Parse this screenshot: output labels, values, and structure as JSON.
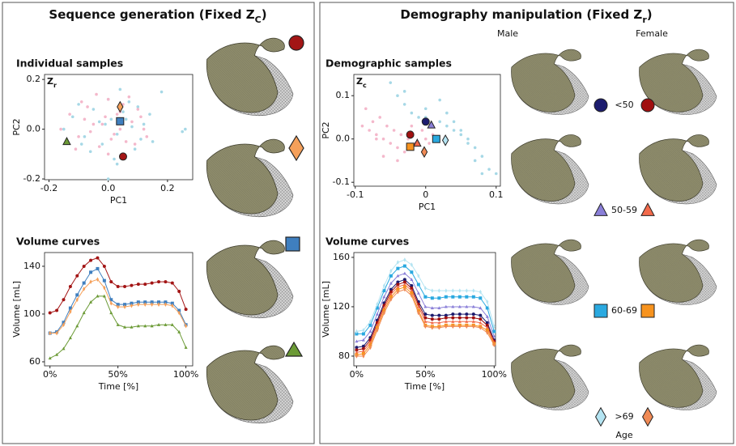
{
  "panels": [
    {
      "title": "Sequence generation (Fixed Z",
      "title_sub": "C",
      "title_end": ")"
    },
    {
      "title": "Demography manipulation (Fixed Z",
      "title_sub": "r",
      "title_end": ")",
      "sex_labels": [
        "Male",
        "Female"
      ],
      "age_groups": [
        "<50",
        "50-59",
        "60-69",
        ">69"
      ],
      "age_label": "Age"
    }
  ],
  "chart_data": [
    {
      "type": "scatter",
      "title": "Individual samples",
      "corner_label": "Z",
      "corner_label_sub": "r",
      "x_label": "PC1",
      "y_label": "PC2",
      "xlim": [
        -0.215,
        0.285
      ],
      "ylim": [
        -0.203,
        0.22
      ],
      "xticks": [
        -0.2,
        {
          "value": 0,
          "label": "0.0"
        },
        0.2
      ],
      "yticks": [
        -0.2,
        {
          "value": 0,
          "label": "0.0"
        },
        0.2
      ],
      "series": [
        {
          "color": "#a6d8e6",
          "marker": "dot",
          "x": [
            -0.12,
            -0.08,
            -0.05,
            -0.02,
            0.0,
            0.03,
            0.06,
            0.09,
            0.12,
            0.15,
            0.18,
            0.25,
            -0.15,
            -0.1,
            -0.03,
            0.02,
            0.05,
            0.08,
            0.11,
            0.14,
            0.04,
            -0.06,
            0.0,
            0.07,
            0.26,
            0.01,
            -0.09,
            0.1,
            0.03,
            -0.01
          ],
          "y": [
            0.05,
            -0.03,
            0.08,
            -0.06,
            0.12,
            -0.02,
            0.04,
            -0.08,
            0.02,
            -0.05,
            0.15,
            -0.01,
            0.0,
            0.1,
            0.03,
            -0.12,
            0.07,
            0.01,
            -0.04,
            0.06,
            0.16,
            -0.09,
            -0.2,
            0.11,
            0.0,
            0.04,
            -0.06,
            0.09,
            -0.14,
            0.02
          ]
        },
        {
          "color": "#f4b8cb",
          "marker": "dot",
          "x": [
            -0.16,
            -0.13,
            -0.1,
            -0.07,
            -0.05,
            -0.03,
            -0.01,
            0.0,
            0.02,
            0.04,
            0.06,
            0.08,
            0.1,
            0.12,
            -0.11,
            -0.08,
            -0.04,
            0.01,
            0.05,
            0.09,
            -0.06,
            -0.02,
            0.03,
            0.07,
            0.13,
            -0.14,
            0.0,
            0.04,
            -0.09,
            0.11
          ],
          "y": [
            0.0,
            0.06,
            -0.03,
            0.09,
            0.02,
            -0.07,
            0.05,
            0.12,
            -0.02,
            0.07,
            -0.05,
            0.03,
            0.08,
            0.0,
            -0.08,
            0.04,
            0.14,
            -0.04,
            0.1,
            -0.06,
            -0.01,
            0.02,
            0.06,
            0.13,
            -0.03,
            -0.05,
            -0.1,
            0.0,
            0.11,
            0.05
          ]
        },
        {
          "color": "#a31515",
          "marker": "circle",
          "x": [
            0.05
          ],
          "y": [
            -0.11
          ]
        },
        {
          "color": "#f5a05a",
          "marker": "diamond",
          "x": [
            0.04
          ],
          "y": [
            0.09
          ]
        },
        {
          "color": "#3f7fbf",
          "marker": "square",
          "x": [
            0.04
          ],
          "y": [
            0.032
          ]
        },
        {
          "color": "#6b9a35",
          "marker": "triangle",
          "x": [
            -0.14
          ],
          "y": [
            -0.05
          ]
        }
      ]
    },
    {
      "type": "line",
      "title": "Volume curves",
      "x_label": "Time [%]",
      "y_label": "Volume [mL]",
      "xlim": [
        -4,
        105
      ],
      "ylim": [
        56.6,
        151.5
      ],
      "xticks": [
        {
          "value": 0,
          "label": "0%"
        },
        {
          "value": 50,
          "label": "50%"
        },
        {
          "value": 100,
          "label": "100%"
        }
      ],
      "yticks": [
        60,
        100,
        140
      ],
      "x": [
        0,
        5,
        10,
        15,
        20,
        25,
        30,
        35,
        40,
        45,
        50,
        55,
        60,
        65,
        70,
        75,
        80,
        85,
        90,
        95,
        100
      ],
      "series": [
        {
          "color": "#a31515",
          "marker": "circle",
          "values": [
            101,
            103,
            112,
            123,
            132,
            140,
            145,
            147,
            140,
            127,
            123,
            123,
            124,
            125,
            125,
            126,
            127,
            127,
            126,
            119,
            104
          ]
        },
        {
          "color": "#3f7fbf",
          "marker": "square",
          "values": [
            84,
            85,
            93,
            105,
            116,
            126,
            135,
            138,
            128,
            112,
            108,
            108,
            109,
            110,
            110,
            110,
            110,
            110,
            109,
            103,
            91
          ]
        },
        {
          "color": "#f5a05a",
          "marker": "diamond",
          "values": [
            84,
            84,
            91,
            102,
            112,
            121,
            127,
            129,
            122,
            109,
            106,
            106,
            107,
            108,
            108,
            108,
            108,
            108,
            107,
            101,
            90
          ]
        },
        {
          "color": "#6b9a35",
          "marker": "triangle",
          "values": [
            63,
            66,
            71,
            80,
            90,
            101,
            110,
            115,
            115,
            101,
            91,
            89,
            89,
            90,
            90,
            90,
            91,
            91,
            91,
            85,
            72
          ]
        }
      ]
    },
    {
      "type": "scatter",
      "title": "Demographic samples",
      "corner_label": "Z",
      "corner_label_sub": "c",
      "x_label": "PC1",
      "y_label": "PC2",
      "xlim": [
        -0.102,
        0.106
      ],
      "ylim": [
        -0.109,
        0.149
      ],
      "xticks": [
        -0.1,
        0,
        0.1
      ],
      "yticks": [
        -0.1,
        {
          "value": 0,
          "label": "0.0"
        },
        0.1
      ],
      "series": [
        {
          "color": "#a6d8e6",
          "marker": "dot",
          "x": [
            -0.05,
            -0.04,
            -0.03,
            -0.02,
            -0.01,
            0.0,
            0.01,
            0.02,
            0.03,
            0.04,
            0.05,
            0.06,
            0.07,
            0.08,
            0.09,
            0.03,
            0.02,
            0.04,
            0.06,
            0.08,
            0.1,
            -0.03,
            0.0,
            0.05,
            0.07
          ],
          "y": [
            0.13,
            0.1,
            0.08,
            0.06,
            0.05,
            0.05,
            0.03,
            0.04,
            0.03,
            0.02,
            0.01,
            0.0,
            -0.02,
            -0.04,
            -0.07,
            0.06,
            0.09,
            0.04,
            -0.01,
            -0.08,
            -0.08,
            0.11,
            0.07,
            0.02,
            -0.05
          ]
        },
        {
          "color": "#f4b8cb",
          "marker": "dot",
          "x": [
            -0.09,
            -0.08,
            -0.07,
            -0.06,
            -0.05,
            -0.04,
            -0.03,
            -0.02,
            -0.01,
            0.0,
            -0.085,
            -0.075,
            -0.065,
            -0.055,
            -0.045,
            -0.035,
            -0.025,
            -0.015,
            -0.005,
            0.005,
            -0.06,
            -0.04,
            -0.02,
            0.01,
            -0.07
          ],
          "y": [
            0.03,
            0.02,
            0.01,
            0.0,
            -0.01,
            -0.02,
            -0.03,
            -0.02,
            -0.01,
            0.0,
            0.07,
            0.04,
            0.05,
            0.03,
            0.02,
            0.01,
            0.0,
            -0.01,
            0.02,
            -0.01,
            -0.04,
            -0.05,
            0.03,
            0.01,
            0.0
          ]
        },
        {
          "color": "#1c1c6e",
          "marker": "circle",
          "x": [
            0.0
          ],
          "y": [
            0.04
          ]
        },
        {
          "color": "#a01010",
          "marker": "circle",
          "x": [
            -0.022
          ],
          "y": [
            0.01
          ]
        },
        {
          "color": "#8a7fd8",
          "marker": "triangle",
          "x": [
            0.008
          ],
          "y": [
            0.032
          ]
        },
        {
          "color": "#f26a4b",
          "marker": "triangle",
          "x": [
            -0.012
          ],
          "y": [
            -0.01
          ]
        },
        {
          "color": "#2aa9e0",
          "marker": "square",
          "x": [
            0.015
          ],
          "y": [
            0.0
          ]
        },
        {
          "color": "#f7931e",
          "marker": "square",
          "x": [
            -0.022
          ],
          "y": [
            -0.018
          ]
        },
        {
          "color": "#b4e4f2",
          "marker": "diamond",
          "x": [
            0.028
          ],
          "y": [
            -0.003
          ]
        },
        {
          "color": "#f08a55",
          "marker": "diamond",
          "x": [
            -0.002
          ],
          "y": [
            -0.03
          ]
        }
      ]
    },
    {
      "type": "line",
      "title": "Volume curves",
      "x_label": "Time [%]",
      "y_label": "Volume [mL]",
      "xlim": [
        -2,
        101
      ],
      "ylim": [
        72.1,
        163.9
      ],
      "xticks": [
        {
          "value": 0,
          "label": "0%"
        },
        {
          "value": 50,
          "label": "50%"
        },
        {
          "value": 100,
          "label": "100%"
        }
      ],
      "yticks": [
        80,
        120,
        160
      ],
      "x": [
        0,
        5,
        10,
        15,
        20,
        25,
        30,
        35,
        40,
        45,
        50,
        55,
        60,
        65,
        70,
        75,
        80,
        85,
        90,
        95,
        100
      ],
      "series": [
        {
          "color": "#1c1c6e",
          "marker": "circle",
          "values": [
            87,
            88,
            95,
            109,
            123,
            134,
            140,
            142,
            137,
            124,
            114,
            113,
            113,
            113,
            114,
            114,
            114,
            114,
            113,
            107,
            93
          ]
        },
        {
          "color": "#a01010",
          "marker": "circle",
          "values": [
            85,
            86,
            93,
            107,
            121,
            132,
            138,
            140,
            135,
            122,
            111,
            110,
            110,
            111,
            111,
            111,
            111,
            111,
            110,
            105,
            92
          ]
        },
        {
          "color": "#8a7fd8",
          "marker": "triangle",
          "values": [
            92,
            93,
            100,
            114,
            128,
            139,
            145,
            147,
            142,
            131,
            120,
            119,
            119,
            120,
            120,
            120,
            120,
            120,
            119,
            112,
            96
          ]
        },
        {
          "color": "#f26a4b",
          "marker": "triangle",
          "values": [
            83,
            84,
            91,
            105,
            119,
            130,
            136,
            138,
            133,
            120,
            108,
            107,
            107,
            108,
            108,
            108,
            108,
            108,
            107,
            103,
            91
          ]
        },
        {
          "color": "#2aa9e0",
          "marker": "square",
          "values": [
            98,
            98,
            105,
            119,
            133,
            145,
            151,
            153,
            148,
            138,
            128,
            127,
            127,
            128,
            128,
            128,
            128,
            128,
            127,
            119,
            100
          ]
        },
        {
          "color": "#f7931e",
          "marker": "square",
          "values": [
            81,
            82,
            89,
            103,
            117,
            128,
            134,
            136,
            131,
            117,
            105,
            104,
            104,
            105,
            105,
            105,
            105,
            105,
            104,
            101,
            90
          ]
        },
        {
          "color": "#b4e4f2",
          "marker": "diamond",
          "values": [
            100,
            101,
            108,
            122,
            137,
            149,
            156,
            158,
            154,
            145,
            135,
            133,
            133,
            133,
            133,
            133,
            133,
            133,
            132,
            124,
            104
          ]
        },
        {
          "color": "#f08a55",
          "marker": "diamond",
          "values": [
            80,
            80,
            87,
            101,
            115,
            126,
            132,
            134,
            129,
            115,
            104,
            103,
            103,
            104,
            104,
            104,
            104,
            104,
            103,
            99,
            89
          ]
        }
      ]
    }
  ]
}
